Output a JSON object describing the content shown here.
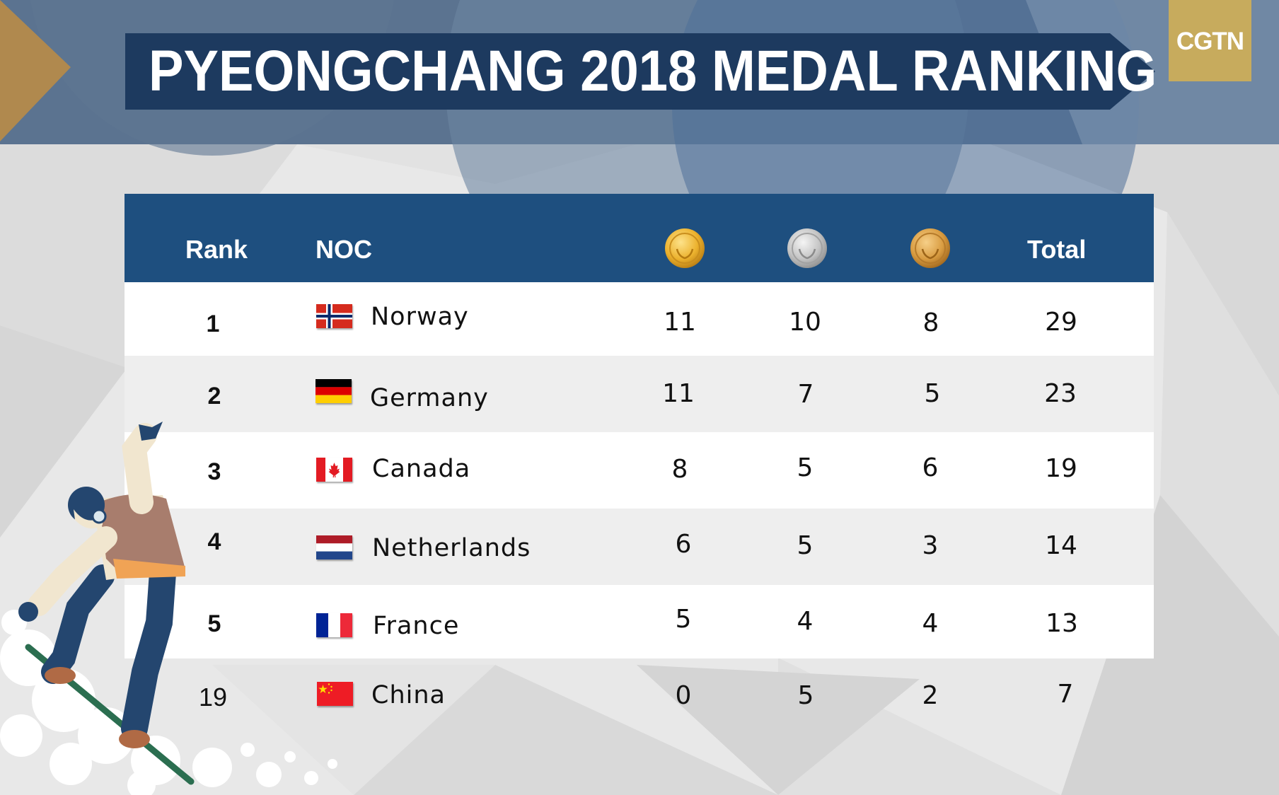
{
  "header": {
    "title": "PYEONGCHANG 2018 MEDAL RANKING",
    "logo": "CGTN"
  },
  "colors": {
    "title_band": "#1d3a5f",
    "table_header": "#1e4f7f",
    "logo_bg": "#c7ab5d",
    "gold": "#e8b030",
    "silver": "#bdbdbd",
    "bronze": "#d9a14a"
  },
  "chart_data": {
    "type": "table",
    "columns": [
      "Rank",
      "NOC",
      "gold-medal-icon",
      "silver-medal-icon",
      "bronze-medal-icon",
      "Total"
    ],
    "header": {
      "rank": "Rank",
      "noc": "NOC",
      "gold_icon": "gold-medal-icon",
      "silver_icon": "silver-medal-icon",
      "bronze_icon": "bronze-medal-icon",
      "total": "Total"
    },
    "rows": [
      {
        "rank": "1",
        "noc": "Norway",
        "flag": "flag-norway-icon",
        "gold": "11",
        "silver": "10",
        "bronze": "8",
        "total": "29"
      },
      {
        "rank": "2",
        "noc": "Germany",
        "flag": "flag-germany-icon",
        "gold": "11",
        "silver": "7",
        "bronze": "5",
        "total": "23"
      },
      {
        "rank": "3",
        "noc": "Canada",
        "flag": "flag-canada-icon",
        "gold": "8",
        "silver": "5",
        "bronze": "6",
        "total": "19"
      },
      {
        "rank": "4",
        "noc": "Netherlands",
        "flag": "flag-netherlands-icon",
        "gold": "6",
        "silver": "5",
        "bronze": "3",
        "total": "14"
      },
      {
        "rank": "5",
        "noc": "France",
        "flag": "flag-france-icon",
        "gold": "5",
        "silver": "4",
        "bronze": "4",
        "total": "13"
      },
      {
        "rank": "19",
        "noc": "China",
        "flag": "flag-china-icon",
        "gold": "0",
        "silver": "5",
        "bronze": "2",
        "total": "7"
      }
    ]
  }
}
